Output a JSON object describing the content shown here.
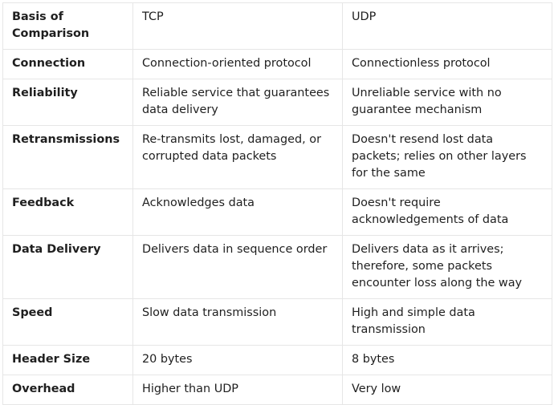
{
  "table": {
    "headers": [
      "Basis of Comparison",
      "TCP",
      "UDP"
    ],
    "rows": [
      {
        "label": "Connection",
        "tcp": "Connection-oriented protocol",
        "udp": "Connectionless protocol"
      },
      {
        "label": "Reliability",
        "tcp": "Reliable service that guarantees data delivery",
        "udp": "Unreliable service with no guarantee mechanism"
      },
      {
        "label": "Retransmissions",
        "tcp": "Re-transmits lost, damaged, or corrupted data packets",
        "udp": "Doesn't resend lost data packets; relies on other layers for the same"
      },
      {
        "label": "Feedback",
        "tcp": "Acknowledges data",
        "udp": "Doesn't require acknowledgements of data"
      },
      {
        "label": "Data Delivery",
        "tcp": "Delivers data in sequence order",
        "udp": "Delivers data as it arrives; therefore, some packets encounter loss along the way"
      },
      {
        "label": "Speed",
        "tcp": "Slow data transmission",
        "udp": "High and simple data transmission"
      },
      {
        "label": "Header Size",
        "tcp": "20 bytes",
        "udp": "8 bytes"
      },
      {
        "label": "Overhead",
        "tcp": "Higher than UDP",
        "udp": "Very low"
      }
    ]
  }
}
